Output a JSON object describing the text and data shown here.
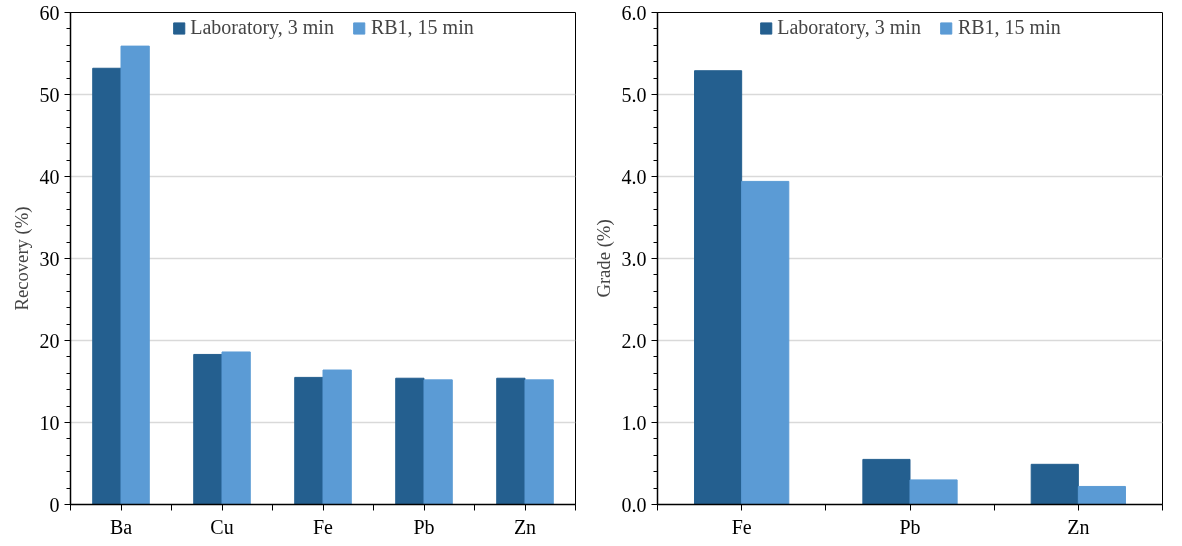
{
  "chart_data": [
    {
      "type": "bar",
      "ylabel": "Recovery (%)",
      "categories": [
        "Ba",
        "Cu",
        "Fe",
        "Pb",
        "Zn"
      ],
      "series": [
        {
          "name": "Laboratory, 3 min",
          "color": "#245f8f",
          "values": [
            53.2,
            18.3,
            15.5,
            15.4,
            15.4
          ]
        },
        {
          "name": "RB1, 15 min",
          "color": "#5b9bd5",
          "values": [
            55.9,
            18.6,
            16.4,
            15.2,
            15.2
          ]
        }
      ],
      "ylim": [
        0,
        60
      ],
      "yticks": [
        0,
        10,
        20,
        30,
        40,
        50,
        60
      ],
      "grid": "y",
      "legend": "top"
    },
    {
      "type": "bar",
      "ylabel": "Grade (%)",
      "categories": [
        "Fe",
        "Pb",
        "Zn"
      ],
      "series": [
        {
          "name": "Laboratory, 3 min",
          "color": "#245f8f",
          "values": [
            5.29,
            0.55,
            0.49
          ]
        },
        {
          "name": "RB1, 15 min",
          "color": "#5b9bd5",
          "values": [
            3.94,
            0.3,
            0.22
          ]
        }
      ],
      "ylim": [
        0,
        6
      ],
      "yticks": [
        {
          "value": 0,
          "label": "0.0"
        },
        {
          "value": 1,
          "label": "1.0"
        },
        {
          "value": 2,
          "label": "2.0"
        },
        {
          "value": 3,
          "label": "3.0"
        },
        {
          "value": 4,
          "label": "4.0"
        },
        {
          "value": 5,
          "label": "5.0"
        },
        {
          "value": 6,
          "label": "6.0"
        }
      ],
      "grid": "y",
      "legend": "top"
    }
  ]
}
